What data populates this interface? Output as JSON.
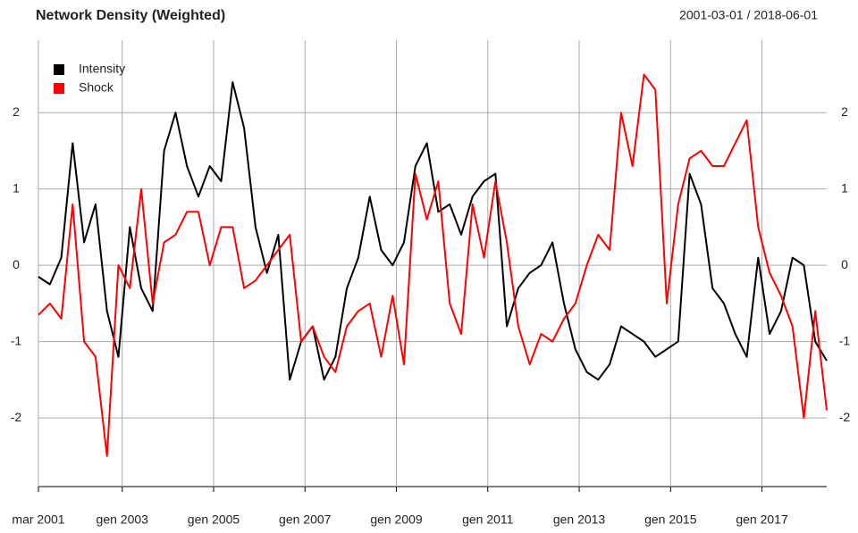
{
  "chart_data": {
    "type": "line",
    "title": "Network Density (Weighted)",
    "date_range": "2001-03-01 / 2018-06-01",
    "x": [
      "2001-03",
      "2001-06",
      "2001-09",
      "2001-12",
      "2002-03",
      "2002-06",
      "2002-09",
      "2002-12",
      "2003-03",
      "2003-06",
      "2003-09",
      "2003-12",
      "2004-03",
      "2004-06",
      "2004-09",
      "2004-12",
      "2005-03",
      "2005-06",
      "2005-09",
      "2005-12",
      "2006-03",
      "2006-06",
      "2006-09",
      "2006-12",
      "2007-03",
      "2007-06",
      "2007-09",
      "2007-12",
      "2008-03",
      "2008-06",
      "2008-09",
      "2008-12",
      "2009-03",
      "2009-06",
      "2009-09",
      "2009-12",
      "2010-03",
      "2010-06",
      "2010-09",
      "2010-12",
      "2011-03",
      "2011-06",
      "2011-09",
      "2011-12",
      "2012-03",
      "2012-06",
      "2012-09",
      "2012-12",
      "2013-03",
      "2013-06",
      "2013-09",
      "2013-12",
      "2014-03",
      "2014-06",
      "2014-09",
      "2014-12",
      "2015-03",
      "2015-06",
      "2015-09",
      "2015-12",
      "2016-03",
      "2016-06",
      "2016-09",
      "2016-12",
      "2017-03",
      "2017-06",
      "2017-09",
      "2017-12",
      "2018-03",
      "2018-06"
    ],
    "series": [
      {
        "name": "Intensity",
        "color": "#000000",
        "values": [
          -0.15,
          -0.25,
          0.1,
          1.6,
          0.3,
          0.8,
          -0.6,
          -1.2,
          0.5,
          -0.3,
          -0.6,
          1.5,
          2.0,
          1.3,
          0.9,
          1.3,
          1.1,
          2.4,
          1.8,
          0.5,
          -0.1,
          0.4,
          -1.5,
          -1.0,
          -0.8,
          -1.5,
          -1.2,
          -0.3,
          0.1,
          0.9,
          0.2,
          0.0,
          0.3,
          1.3,
          1.6,
          0.7,
          0.8,
          0.4,
          0.9,
          1.1,
          1.2,
          -0.8,
          -0.3,
          -0.1,
          0.0,
          0.3,
          -0.5,
          -1.1,
          -1.4,
          -1.5,
          -1.3,
          -0.8,
          -0.9,
          -1.0,
          -1.2,
          -1.1,
          -1.0,
          1.2,
          0.8,
          -0.3,
          -0.5,
          -0.9,
          -1.2,
          0.1,
          -0.9,
          -0.6,
          0.1,
          0.0,
          -1.0,
          -1.25
        ]
      },
      {
        "name": "Shock",
        "color": "#ff0000",
        "values": [
          -0.65,
          -0.5,
          -0.7,
          0.8,
          -1.0,
          -1.2,
          -2.5,
          0.0,
          -0.3,
          1.0,
          -0.5,
          0.3,
          0.4,
          0.7,
          0.7,
          0.0,
          0.5,
          0.5,
          -0.3,
          -0.2,
          0.0,
          0.2,
          0.4,
          -1.0,
          -0.8,
          -1.2,
          -1.4,
          -0.8,
          -0.6,
          -0.5,
          -1.2,
          -0.4,
          -1.3,
          1.2,
          0.6,
          1.1,
          -0.5,
          -0.9,
          0.8,
          0.1,
          1.1,
          0.3,
          -0.8,
          -1.3,
          -0.9,
          -1.0,
          -0.7,
          -0.5,
          0.0,
          0.4,
          0.2,
          2.0,
          1.3,
          2.5,
          2.3,
          -0.5,
          0.8,
          1.4,
          1.5,
          1.3,
          1.3,
          1.6,
          1.9,
          0.5,
          -0.1,
          -0.4,
          -0.8,
          -2.0,
          -0.6,
          -1.9
        ]
      }
    ],
    "xlim": [
      "2001-03",
      "2018-06"
    ],
    "xticks": [
      {
        "value": "2001-03",
        "label": "mar 2001"
      },
      {
        "value": "2003-01",
        "label": "gen 2003"
      },
      {
        "value": "2005-01",
        "label": "gen 2005"
      },
      {
        "value": "2007-01",
        "label": "gen 2007"
      },
      {
        "value": "2009-01",
        "label": "gen 2009"
      },
      {
        "value": "2011-01",
        "label": "gen 2011"
      },
      {
        "value": "2013-01",
        "label": "gen 2013"
      },
      {
        "value": "2015-01",
        "label": "gen 2015"
      },
      {
        "value": "2017-01",
        "label": "gen 2017"
      }
    ],
    "ylim": [
      -2.9,
      2.95
    ],
    "yticks": [
      -2,
      -1,
      0,
      1,
      2
    ],
    "grid": true,
    "legend": "top-left"
  }
}
